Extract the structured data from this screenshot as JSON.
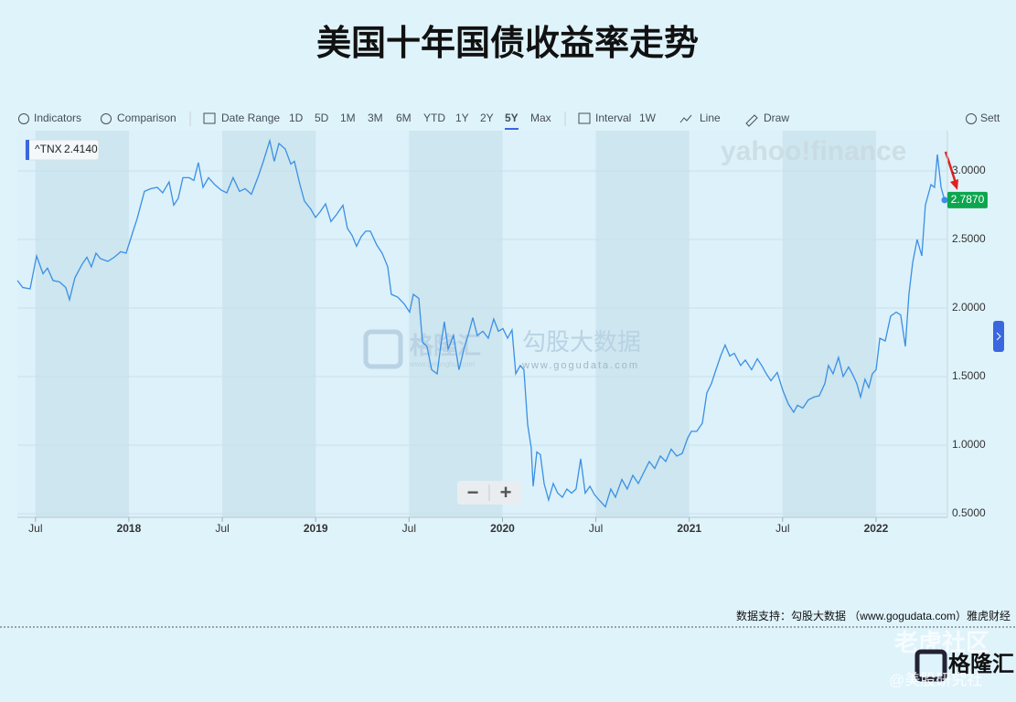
{
  "title": "美国十年国债收益率走势",
  "toolbar": {
    "items": [
      "Indicators",
      "Comparison",
      "Date Range",
      "1D",
      "5D",
      "1M",
      "3M",
      "6M",
      "YTD",
      "1Y",
      "2Y",
      "5Y",
      "Max",
      "Interval",
      "1W",
      "Line",
      "Draw",
      "Sett"
    ],
    "active": "5Y"
  },
  "watermarks": {
    "brand": "yahoo!finance",
    "gelonghui": "格隆汇",
    "gelonghui_url": "www.gelonghui.com",
    "gogu": "勾股大数据",
    "gogu_url": "www.gogudata.com",
    "tiger": "老虎社区",
    "logo": "格隆汇",
    "author": "@美股研究社"
  },
  "zoom_controls": [
    "−",
    "+"
  ],
  "footer": "数据支持：勾股大数据 （www.gogudata.com）雅虎财经",
  "chart_data": {
    "type": "line",
    "legend_value": "2.4140",
    "last_value_label": "2.7870",
    "x": [
      2017.403,
      2017.432,
      2017.471,
      2017.506,
      2017.54,
      2017.564,
      2017.594,
      2017.628,
      2017.662,
      2017.682,
      2017.711,
      2017.75,
      2017.775,
      2017.799,
      2017.824,
      2017.848,
      2017.887,
      2017.922,
      2017.956,
      2017.985,
      2018.02,
      2018.044,
      2018.083,
      2018.118,
      2018.152,
      2018.181,
      2018.215,
      2018.24,
      2018.264,
      2018.289,
      2018.323,
      2018.348,
      2018.372,
      2018.397,
      2018.426,
      2018.46,
      2018.494,
      2018.524,
      2018.558,
      2018.592,
      2018.622,
      2018.656,
      2018.69,
      2018.72,
      2018.754,
      2018.778,
      2018.803,
      2018.837,
      2018.867,
      2018.886,
      2018.916,
      2018.94,
      2018.974,
      2018.999,
      2019.023,
      2019.053,
      2019.082,
      2019.111,
      2019.146,
      2019.17,
      2019.195,
      2019.219,
      2019.244,
      2019.268,
      2019.293,
      2019.327,
      2019.356,
      2019.386,
      2019.405,
      2019.439,
      2019.474,
      2019.503,
      2019.523,
      2019.552,
      2019.572,
      2019.596,
      2019.621,
      2019.65,
      2019.67,
      2019.689,
      2019.709,
      2019.738,
      2019.767,
      2019.797,
      2019.816,
      2019.841,
      2019.865,
      2019.895,
      2019.924,
      2019.953,
      2019.978,
      2020.002,
      2020.027,
      2020.051,
      2020.071,
      2020.095,
      2020.115,
      2020.135,
      2020.154,
      2020.164,
      2020.184,
      2020.203,
      2020.223,
      2020.247,
      2020.272,
      2020.296,
      2020.321,
      2020.345,
      2020.37,
      2020.394,
      2020.419,
      2020.443,
      2020.468,
      2020.492,
      2020.517,
      2020.551,
      2020.58,
      2020.605,
      2020.639,
      2020.668,
      2020.698,
      2020.727,
      2020.756,
      2020.786,
      2020.815,
      2020.845,
      2020.874,
      2020.903,
      2020.933,
      2020.962,
      2020.991,
      2021.011,
      2021.04,
      2021.07,
      2021.094,
      2021.119,
      2021.143,
      2021.168,
      2021.192,
      2021.217,
      2021.241,
      2021.275,
      2021.3,
      2021.334,
      2021.364,
      2021.388,
      2021.412,
      2021.437,
      2021.471,
      2021.501,
      2021.53,
      2021.559,
      2021.579,
      2021.608,
      2021.638,
      2021.667,
      2021.696,
      2021.726,
      2021.745,
      2021.77,
      2021.799,
      2021.824,
      2021.853,
      2021.873,
      2021.897,
      2021.917,
      2021.941,
      2021.961,
      2021.98,
      2022.0,
      2022.02,
      2022.049,
      2022.078,
      2022.108,
      2022.132,
      2022.157,
      2022.176,
      2022.196,
      2022.22,
      2022.245,
      2022.264,
      2022.294,
      2022.313,
      2022.328,
      2022.348,
      2022.367
    ],
    "series": [
      {
        "name": "^TNX",
        "color": "#3b8fe5",
        "values": [
          2.2,
          2.15,
          2.14,
          2.38,
          2.25,
          2.29,
          2.2,
          2.19,
          2.15,
          2.06,
          2.22,
          2.32,
          2.37,
          2.3,
          2.4,
          2.36,
          2.34,
          2.37,
          2.41,
          2.4,
          2.55,
          2.65,
          2.85,
          2.87,
          2.88,
          2.84,
          2.92,
          2.75,
          2.8,
          2.95,
          2.95,
          2.93,
          3.06,
          2.88,
          2.95,
          2.9,
          2.86,
          2.84,
          2.95,
          2.85,
          2.87,
          2.83,
          2.95,
          3.07,
          3.22,
          3.07,
          3.2,
          3.16,
          3.05,
          3.07,
          2.9,
          2.78,
          2.72,
          2.66,
          2.7,
          2.76,
          2.63,
          2.68,
          2.75,
          2.58,
          2.53,
          2.45,
          2.52,
          2.56,
          2.56,
          2.46,
          2.4,
          2.3,
          2.1,
          2.08,
          2.03,
          1.97,
          2.1,
          2.07,
          1.75,
          1.72,
          1.55,
          1.52,
          1.73,
          1.9,
          1.7,
          1.8,
          1.55,
          1.72,
          1.8,
          1.93,
          1.8,
          1.83,
          1.78,
          1.92,
          1.83,
          1.85,
          1.78,
          1.84,
          1.52,
          1.58,
          1.55,
          1.15,
          0.98,
          0.7,
          0.95,
          0.93,
          0.72,
          0.6,
          0.72,
          0.65,
          0.62,
          0.68,
          0.65,
          0.68,
          0.9,
          0.65,
          0.7,
          0.64,
          0.6,
          0.55,
          0.68,
          0.62,
          0.75,
          0.68,
          0.78,
          0.72,
          0.8,
          0.88,
          0.83,
          0.92,
          0.88,
          0.97,
          0.92,
          0.94,
          1.05,
          1.1,
          1.1,
          1.16,
          1.38,
          1.45,
          1.55,
          1.65,
          1.73,
          1.65,
          1.67,
          1.58,
          1.62,
          1.55,
          1.63,
          1.58,
          1.52,
          1.47,
          1.53,
          1.4,
          1.3,
          1.24,
          1.29,
          1.27,
          1.33,
          1.35,
          1.36,
          1.45,
          1.58,
          1.52,
          1.64,
          1.5,
          1.57,
          1.52,
          1.45,
          1.35,
          1.48,
          1.42,
          1.52,
          1.55,
          1.78,
          1.76,
          1.94,
          1.97,
          1.95,
          1.72,
          2.1,
          2.33,
          2.5,
          2.38,
          2.75,
          2.9,
          2.88,
          3.12,
          2.88,
          2.787
        ]
      }
    ],
    "xlim": [
      2017.403,
      2022.382
    ],
    "xticks": [
      {
        "value": 2017.5,
        "label": "Jul"
      },
      2018,
      {
        "value": 2018.5,
        "label": "Jul"
      },
      2019,
      {
        "value": 2019.5,
        "label": "Jul"
      },
      2020,
      {
        "value": 2020.5,
        "label": "Jul"
      },
      2021,
      {
        "value": 2021.5,
        "label": "Jul"
      },
      2022
    ],
    "ylim": [
      0.473,
      3.293
    ],
    "yticks": [
      {
        "value": 0.5,
        "label": "0.5000"
      },
      {
        "value": 1,
        "label": "1.0000"
      },
      {
        "value": 1.5,
        "label": "1.5000"
      },
      {
        "value": 2,
        "label": "2.0000"
      },
      {
        "value": 2.5,
        "label": "2.5000"
      },
      {
        "value": 3,
        "label": "3.0000"
      }
    ],
    "grid": true
  }
}
